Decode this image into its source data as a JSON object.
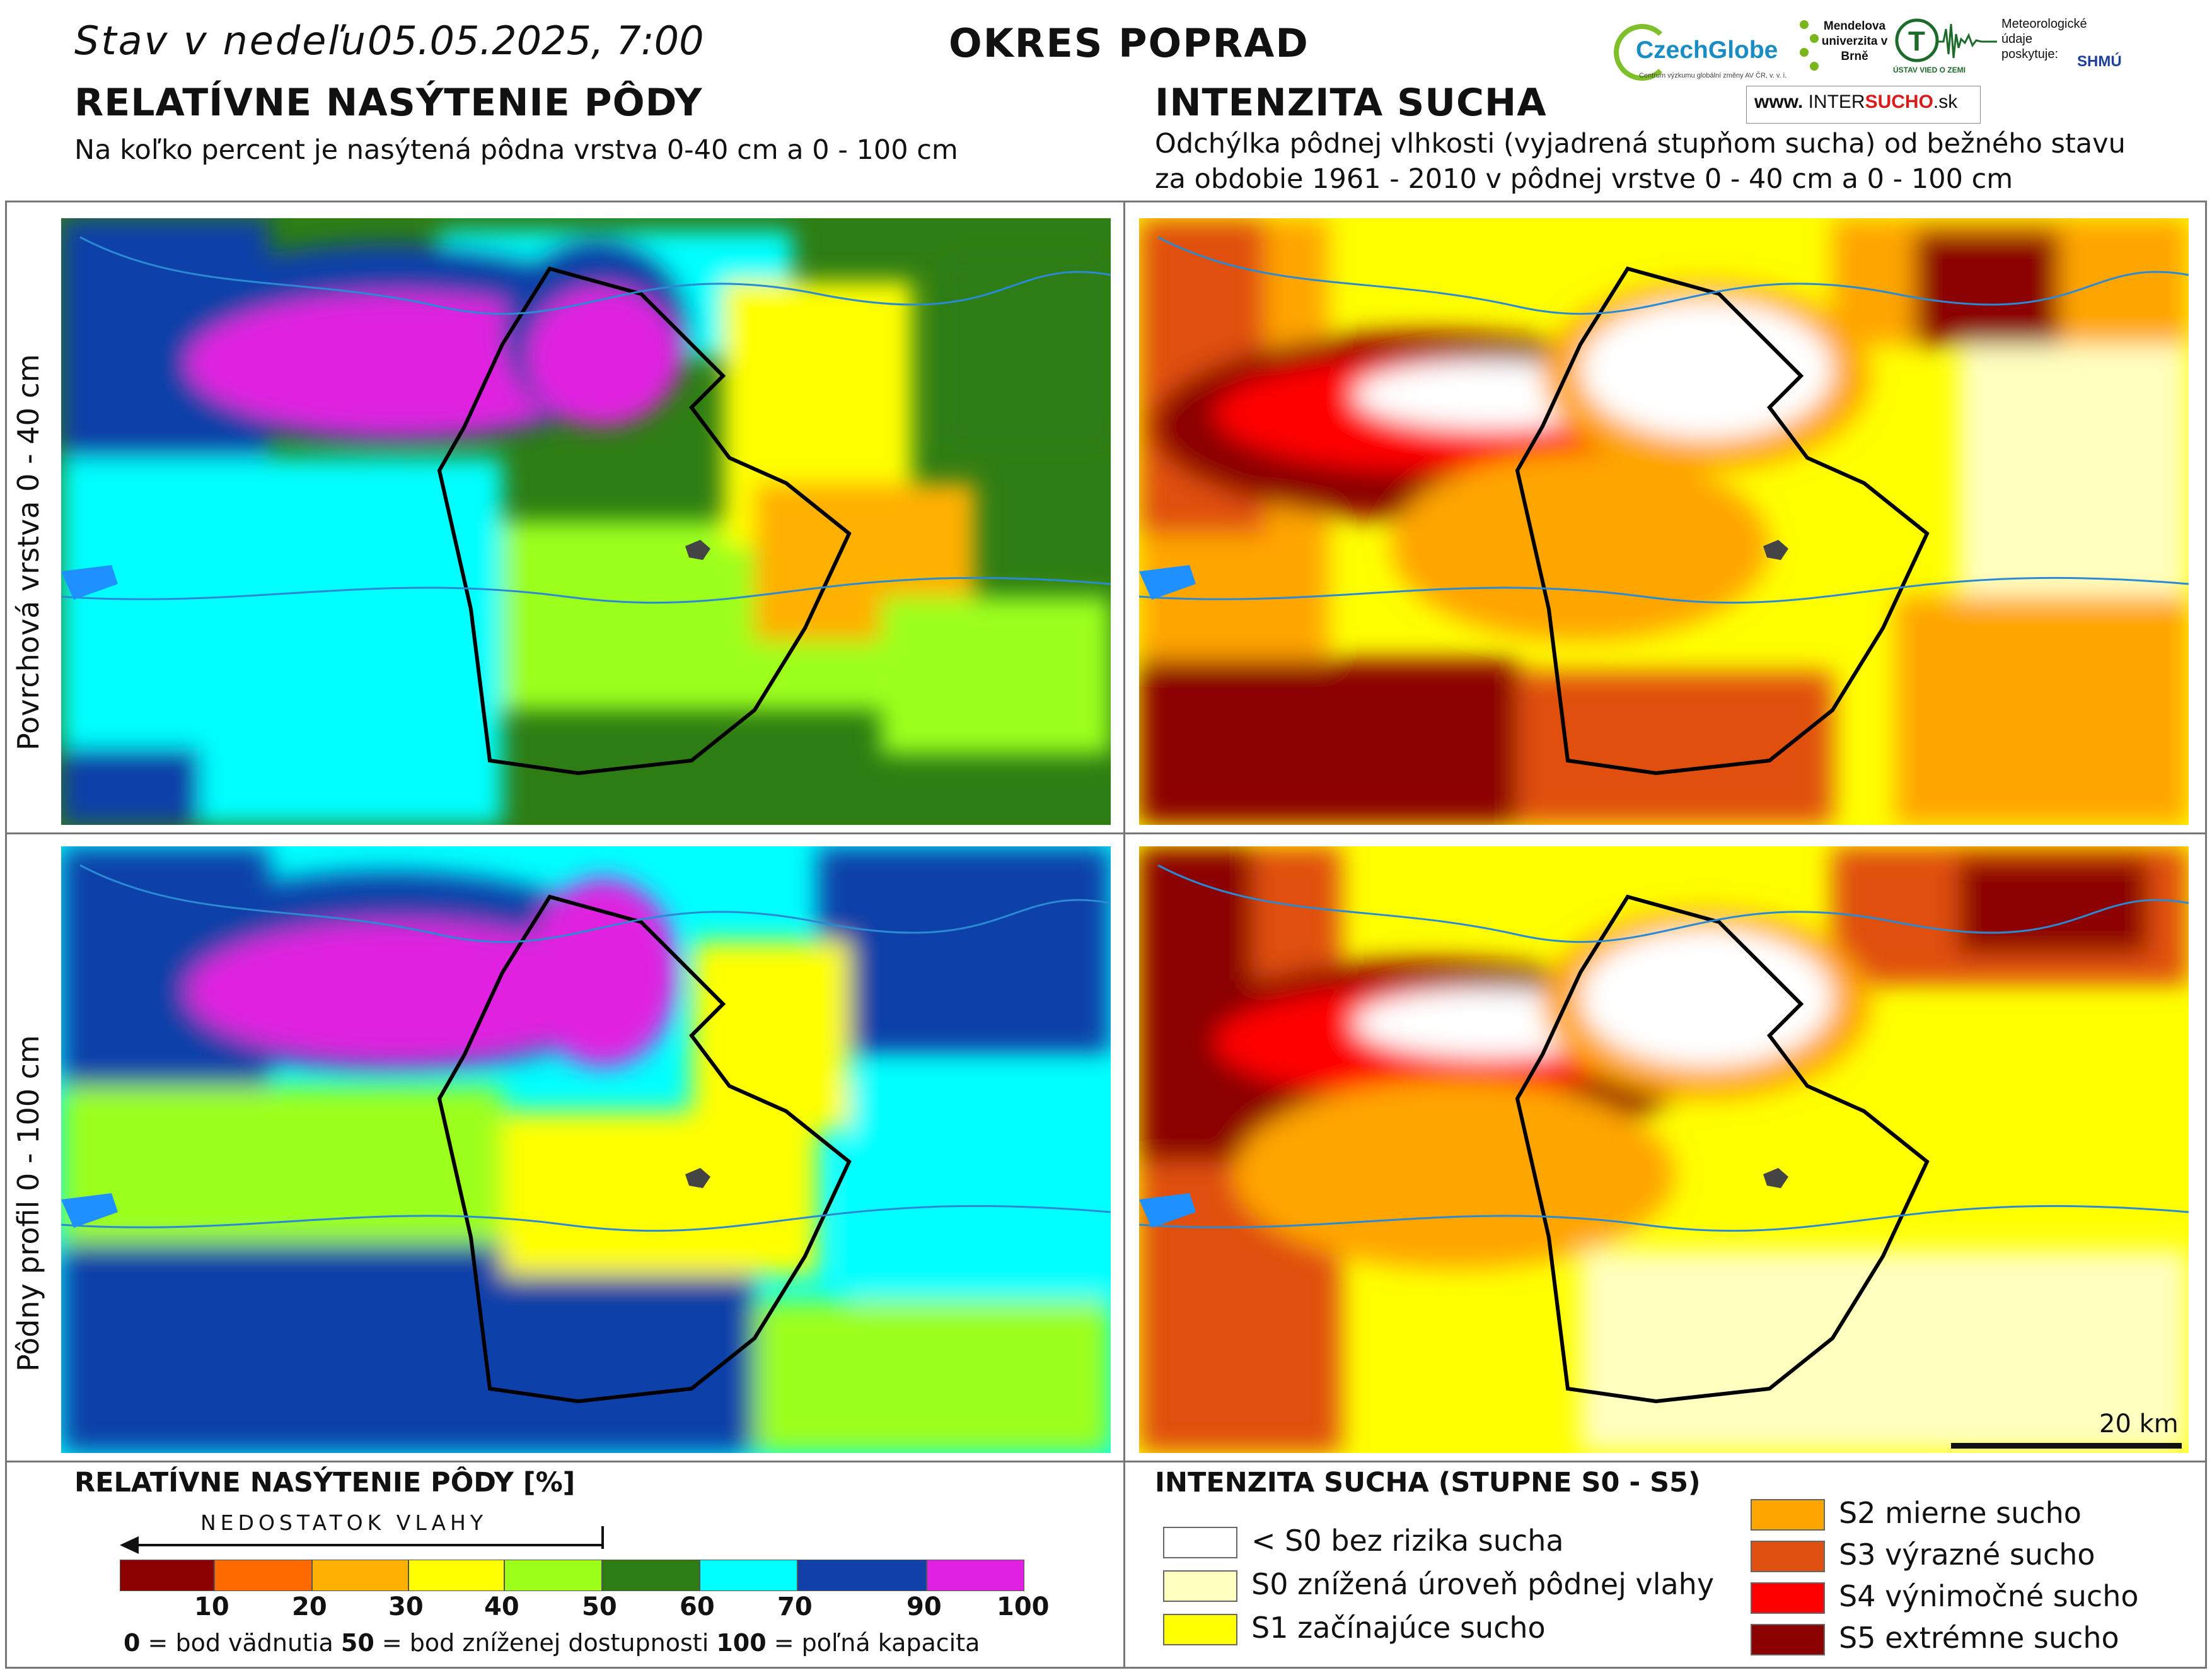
{
  "header": {
    "date_label": "Stav v nedeľu",
    "date_value": "05.05.2025, 7:00",
    "district": "OKRES POPRAD"
  },
  "left_panel": {
    "title": "RELATÍVNE NASÝTENIE PÔDY",
    "subtitle": "Na koľko percent je nasýtená pôdna vrstva 0-40 cm a 0 - 100 cm"
  },
  "right_panel": {
    "title": "INTENZITA SUCHA",
    "subtitle_line1": "Odchýlka pôdnej vlhkosti (vyjadrená stupňom sucha) od bežného stavu",
    "subtitle_line2": "za obdobie 1961 - 2010 v pôdnej vrstve 0 - 40 cm a 0 - 100 cm"
  },
  "logos": {
    "czechglobe": "CzechGlobe",
    "czechglobe_tag": "Centrum výzkumu globální změny AV ČR, v. v. i.",
    "mendel": "Mendelova univerzita v Brně",
    "ustav": "ÚSTAV VIED O ZEMI",
    "meteo": "Meteorologické údaje poskytuje:",
    "shmu": "SHMÚ",
    "intersucho_prefix": "www.",
    "intersucho_inter": "INTER",
    "intersucho_sucho": "SUCHO",
    "intersucho_suffix": ".sk"
  },
  "row_labels": {
    "top": "Povrchová vrstva 0 - 40 cm",
    "bottom": "Pôdny profil 0 - 100 cm"
  },
  "scale": {
    "label": "20 km"
  },
  "legend_saturation": {
    "title": "RELATÍVNE NASÝTENIE PÔDY [%]",
    "arrow_text": "NEDOSTATOK VLAHY",
    "colors": [
      "#8b0000",
      "#ff6a00",
      "#ffb000",
      "#ffff00",
      "#9cff1a",
      "#2e7d14",
      "#00ffff",
      "#1040a8",
      "#e020e0"
    ],
    "ticks": [
      "10",
      "20",
      "30",
      "40",
      "50",
      "60",
      "70",
      "90",
      "100"
    ],
    "note_0": "0",
    "note_0_text": " = bod vädnutia   ",
    "note_50": "50",
    "note_50_text": " = bod zníženej dostupnosti   ",
    "note_100": "100",
    "note_100_text": " = poľná kapacita"
  },
  "legend_drought": {
    "title": "INTENZITA SUCHA (STUPNE S0 - S5)",
    "items": [
      {
        "label": "< S0 bez rizika sucha",
        "color": "#ffffff"
      },
      {
        "label": "S0 znížená úroveň pôdnej vlahy",
        "color": "#ffffc0"
      },
      {
        "label": "S1 začínajúce sucho",
        "color": "#ffff00"
      },
      {
        "label": "S2 mierne sucho",
        "color": "#ffa500"
      },
      {
        "label": "S3 výrazné sucho",
        "color": "#e05010"
      },
      {
        "label": "S4 výnimočné sucho",
        "color": "#ff0000"
      },
      {
        "label": "S5 extrémne sucho",
        "color": "#8b0000"
      }
    ]
  }
}
